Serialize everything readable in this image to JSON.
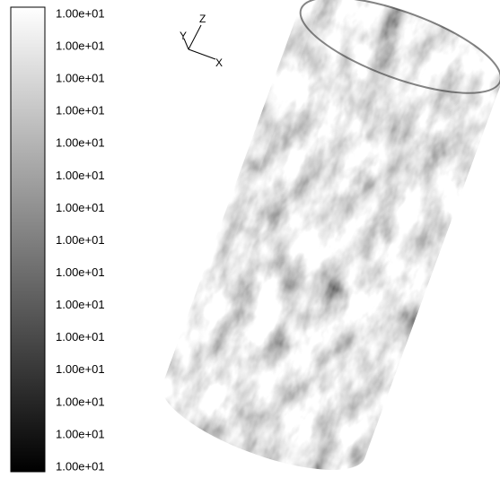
{
  "colorbar": {
    "labels": [
      "1.00e+01",
      "1.00e+01",
      "1.00e+01",
      "1.00e+01",
      "1.00e+01",
      "1.00e+01",
      "1.00e+01",
      "1.00e+01",
      "1.00e+01",
      "1.00e+01",
      "1.00e+01",
      "1.00e+01",
      "1.00e+01",
      "1.00e+01",
      "1.00e+01"
    ]
  },
  "axes": {
    "z": "Z",
    "y": "Y",
    "x": "X"
  }
}
